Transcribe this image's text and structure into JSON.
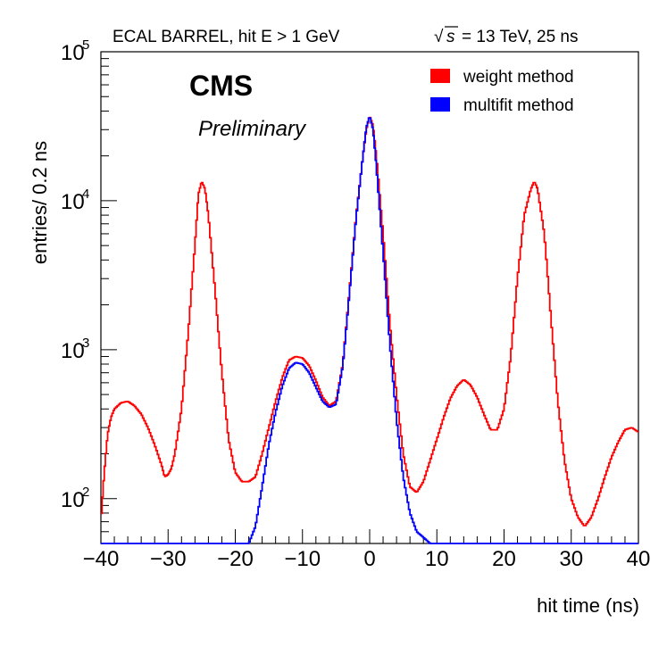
{
  "chart_data": {
    "type": "line",
    "title": "ECAL BARREL, hit E > 1 GeV",
    "title_energy": "= 13 TeV, 25 ns",
    "title_sqrt_symbol": "s",
    "experiment_label": "CMS",
    "status_label": "Preliminary",
    "xlabel": "hit time (ns)",
    "ylabel": "entries/ 0.2 ns",
    "xlim": [
      -40,
      40
    ],
    "ylim": [
      50,
      100000
    ],
    "y_scale": "log",
    "grid": false,
    "legend_position": "top-right",
    "x_tick_labels": [
      "−40",
      "−30",
      "−20",
      "−10",
      "0",
      "10",
      "20",
      "30",
      "40"
    ],
    "y_tick_labels": [
      {
        "base": "10",
        "exp": "2",
        "value": 100
      },
      {
        "base": "10",
        "exp": "3",
        "value": 1000
      },
      {
        "base": "10",
        "exp": "4",
        "value": 10000
      },
      {
        "base": "10",
        "exp": "5",
        "value": 100000
      }
    ],
    "series": [
      {
        "name": "weight method",
        "color": "#ff0000",
        "points": [
          [
            -40,
            70
          ],
          [
            -39.5,
            150
          ],
          [
            -39,
            270
          ],
          [
            -38.5,
            350
          ],
          [
            -38,
            400
          ],
          [
            -37,
            440
          ],
          [
            -36,
            450
          ],
          [
            -35,
            420
          ],
          [
            -34,
            370
          ],
          [
            -33,
            300
          ],
          [
            -32,
            230
          ],
          [
            -31,
            170
          ],
          [
            -30.5,
            140
          ],
          [
            -30,
            145
          ],
          [
            -29.5,
            160
          ],
          [
            -29,
            200
          ],
          [
            -28,
            400
          ],
          [
            -27,
            1300
          ],
          [
            -26,
            5000
          ],
          [
            -25.5,
            11000
          ],
          [
            -25,
            13500
          ],
          [
            -24.5,
            12000
          ],
          [
            -24,
            8000
          ],
          [
            -23,
            2500
          ],
          [
            -22,
            700
          ],
          [
            -21,
            250
          ],
          [
            -20,
            150
          ],
          [
            -19,
            130
          ],
          [
            -18,
            130
          ],
          [
            -17,
            140
          ],
          [
            -16,
            200
          ],
          [
            -15,
            300
          ],
          [
            -14,
            450
          ],
          [
            -13,
            650
          ],
          [
            -12,
            850
          ],
          [
            -11,
            900
          ],
          [
            -10,
            880
          ],
          [
            -9,
            780
          ],
          [
            -8,
            620
          ],
          [
            -7,
            480
          ],
          [
            -6,
            420
          ],
          [
            -5,
            450
          ],
          [
            -4,
            800
          ],
          [
            -3,
            2500
          ],
          [
            -2,
            8000
          ],
          [
            -1,
            20000
          ],
          [
            -0.5,
            30000
          ],
          [
            0,
            37000
          ],
          [
            0.5,
            32000
          ],
          [
            1,
            20000
          ],
          [
            2,
            6000
          ],
          [
            3,
            1500
          ],
          [
            4,
            500
          ],
          [
            5,
            200
          ],
          [
            6,
            120
          ],
          [
            7,
            110
          ],
          [
            8,
            130
          ],
          [
            9,
            180
          ],
          [
            10,
            250
          ],
          [
            11,
            350
          ],
          [
            12,
            470
          ],
          [
            13,
            570
          ],
          [
            14,
            630
          ],
          [
            15,
            580
          ],
          [
            16,
            480
          ],
          [
            17,
            370
          ],
          [
            18,
            290
          ],
          [
            19,
            290
          ],
          [
            20,
            400
          ],
          [
            21,
            900
          ],
          [
            22,
            3000
          ],
          [
            23,
            8000
          ],
          [
            24,
            12000
          ],
          [
            24.5,
            13500
          ],
          [
            25,
            12000
          ],
          [
            26,
            6000
          ],
          [
            27,
            1600
          ],
          [
            28,
            450
          ],
          [
            29,
            180
          ],
          [
            30,
            100
          ],
          [
            31,
            75
          ],
          [
            32,
            65
          ],
          [
            33,
            75
          ],
          [
            34,
            100
          ],
          [
            35,
            140
          ],
          [
            36,
            190
          ],
          [
            37,
            240
          ],
          [
            38,
            290
          ],
          [
            39,
            300
          ],
          [
            40,
            280
          ]
        ]
      },
      {
        "name": "multifit method",
        "color": "#0000ff",
        "points": [
          [
            -40,
            50
          ],
          [
            -18,
            50
          ],
          [
            -17,
            65
          ],
          [
            -16,
            120
          ],
          [
            -15,
            230
          ],
          [
            -14,
            380
          ],
          [
            -13,
            570
          ],
          [
            -12,
            750
          ],
          [
            -11,
            820
          ],
          [
            -10,
            800
          ],
          [
            -9,
            700
          ],
          [
            -8,
            560
          ],
          [
            -7,
            450
          ],
          [
            -6,
            410
          ],
          [
            -5,
            430
          ],
          [
            -4,
            780
          ],
          [
            -3,
            2400
          ],
          [
            -2,
            7800
          ],
          [
            -1,
            20000
          ],
          [
            -0.5,
            31000
          ],
          [
            0,
            37000
          ],
          [
            0.5,
            30000
          ],
          [
            1,
            17000
          ],
          [
            2,
            4500
          ],
          [
            3,
            1100
          ],
          [
            4,
            340
          ],
          [
            5,
            140
          ],
          [
            6,
            80
          ],
          [
            7,
            60
          ],
          [
            8,
            55
          ],
          [
            9,
            50
          ],
          [
            40,
            50
          ]
        ]
      }
    ]
  }
}
